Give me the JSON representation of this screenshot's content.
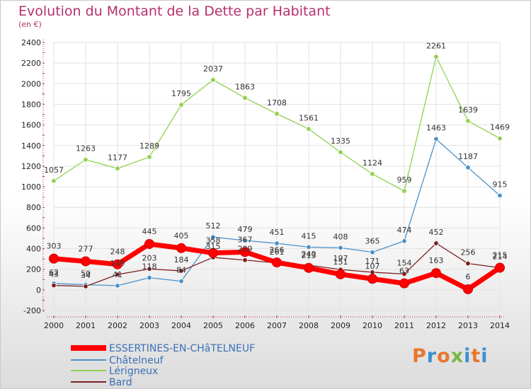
{
  "title": "Evolution du Montant de la Dette par Habitant",
  "subtitle": "(en €)",
  "logo": {
    "text": "Proxiti",
    "colors": [
      "#e8772e",
      "#3b8fd1",
      "#e8772e",
      "#7ab648",
      "#3b8fd1",
      "#e8772e",
      "#3b8fd1"
    ]
  },
  "chart_data": {
    "type": "line",
    "x": [
      "2000",
      "2001",
      "2002",
      "2003",
      "2004",
      "2005",
      "2006",
      "2007",
      "2008",
      "2009",
      "2010",
      "2011",
      "2012",
      "2013",
      "2014"
    ],
    "ylim": [
      -200,
      2400
    ],
    "yticks": [
      -200,
      0,
      200,
      400,
      600,
      800,
      1000,
      1200,
      1400,
      1600,
      1800,
      2000,
      2200,
      2400
    ],
    "grid": true,
    "legend_position": "bottom-left",
    "series": [
      {
        "name": "ESSERTINES-EN-CHâTELNEUF",
        "color": "#ff0000",
        "values": [
          303,
          277,
          248,
          445,
          405,
          358,
          367,
          266,
          213,
          151,
          107,
          63,
          163,
          6,
          215
        ]
      },
      {
        "name": "Châtelneuf",
        "color": "#4a90c8",
        "values": [
          62,
          50,
          41,
          118,
          84,
          512,
          479,
          451,
          415,
          408,
          365,
          474,
          1463,
          1187,
          915
        ]
      },
      {
        "name": "Lérigneux",
        "color": "#8fd14f",
        "values": [
          1057,
          1263,
          1177,
          1289,
          1795,
          2037,
          1863,
          1708,
          1561,
          1335,
          1124,
          959,
          2261,
          1639,
          1469
        ]
      },
      {
        "name": "Bard",
        "color": "#7b2020",
        "values": [
          43,
          34,
          149,
          203,
          184,
          315,
          289,
          261,
          240,
          197,
          171,
          154,
          452,
          256,
          214
        ]
      }
    ]
  }
}
